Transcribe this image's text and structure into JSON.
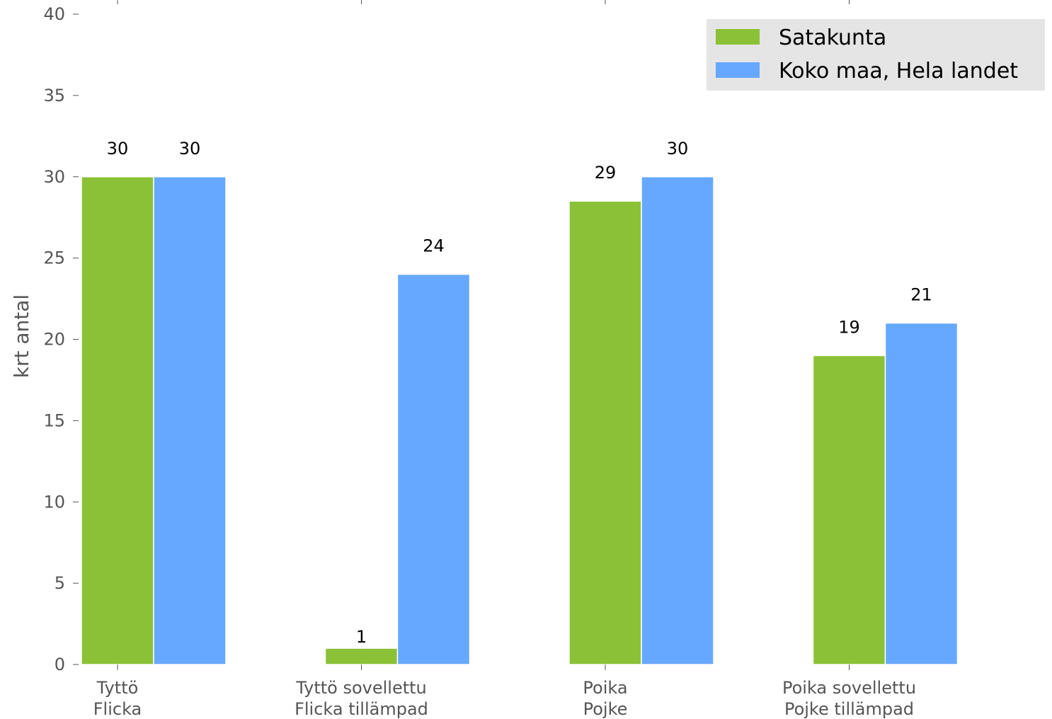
{
  "chart_data": {
    "type": "bar",
    "title": "",
    "ylabel": "krt antal",
    "xlabel": "",
    "ylim": [
      0,
      40
    ],
    "yticks": [
      0,
      5,
      10,
      15,
      20,
      25,
      30,
      35,
      40
    ],
    "categories": [
      [
        "Tyttö",
        "Flicka"
      ],
      [
        "Tyttö sovellettu",
        "Flicka tillämpad"
      ],
      [
        "Poika",
        "Pojke"
      ],
      [
        "Poika sovellettu",
        "Pojke tillämpad"
      ]
    ],
    "series": [
      {
        "name": "Satakunta",
        "color": "#8bc136",
        "values": [
          30,
          1,
          28.5,
          19
        ],
        "labels": [
          "30",
          "1",
          "29",
          "19"
        ]
      },
      {
        "name": "Koko maa, Hela landet",
        "color": "#66a8ff",
        "values": [
          30,
          null,
          30,
          21
        ],
        "labels": [
          "30",
          null,
          "30",
          "21"
        ]
      }
    ],
    "series_extra": {
      "Koko maa, Hela landet": [
        30,
        24,
        30,
        21
      ]
    },
    "data_labels_visible": true,
    "grid": false,
    "legend": "top-right"
  }
}
